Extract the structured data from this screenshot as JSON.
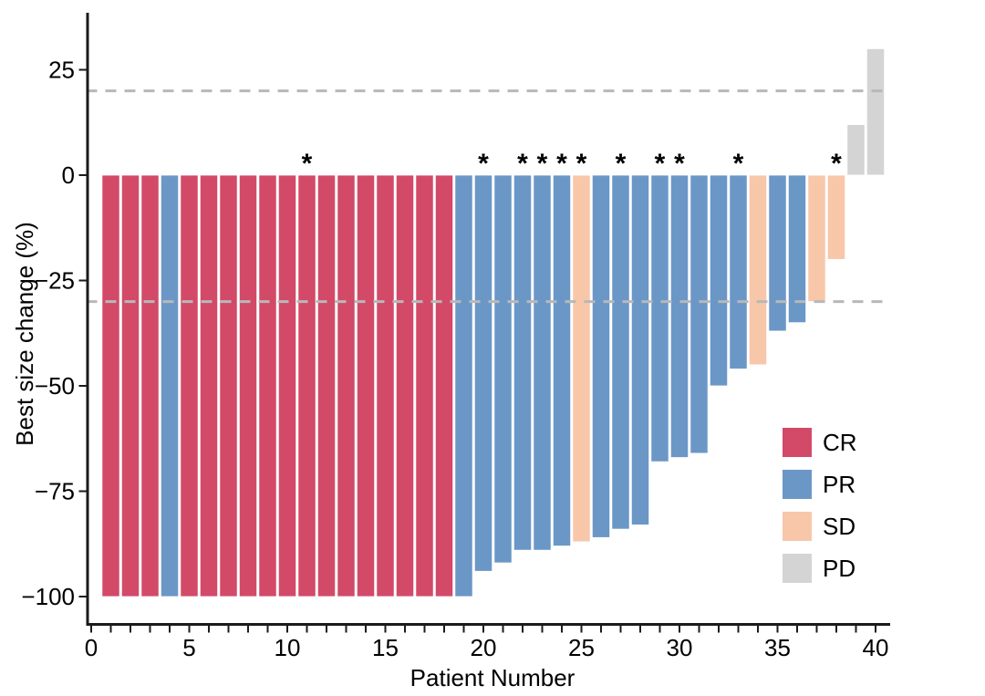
{
  "figure": {
    "background": "#ffffff"
  },
  "colors": {
    "CR": "#d24a68",
    "PR": "#6b97c7",
    "SD": "#f8c7a9",
    "PD": "#d4d4d4",
    "reference_line": "#b8b8b8",
    "axis": "#1a1a1a",
    "text": "#000000"
  },
  "chart_data": {
    "type": "bar",
    "variant": "waterfall",
    "title": "",
    "xlabel": "Patient Number",
    "ylabel": "Best size change (%)",
    "xlim": [
      -0.6,
      40.9
    ],
    "ylim": [
      -107,
      38
    ],
    "x_major_ticks": [
      0,
      5,
      10,
      15,
      20,
      25,
      30,
      35,
      40
    ],
    "x_minor_tick_every": 1,
    "y_ticks": [
      25,
      0,
      -25,
      -50,
      -75,
      -100
    ],
    "y_tick_labels": [
      "25",
      "0",
      "−25",
      "−50",
      "−75",
      "−100"
    ],
    "grid": "off",
    "reference_lines": [
      20,
      -30
    ],
    "marker_symbol": "*",
    "marked_patients": [
      11,
      20,
      22,
      23,
      24,
      25,
      27,
      29,
      30,
      33,
      38
    ],
    "legend": {
      "position": "inside-right-lower",
      "entries": [
        {
          "label": "CR",
          "color": "#d24a68"
        },
        {
          "label": "PR",
          "color": "#6b97c7"
        },
        {
          "label": "SD",
          "color": "#f8c7a9"
        },
        {
          "label": "PD",
          "color": "#d4d4d4"
        }
      ]
    },
    "patients": [
      {
        "patient": 1,
        "value": -100,
        "response": "CR",
        "marked": false
      },
      {
        "patient": 2,
        "value": -100,
        "response": "CR",
        "marked": false
      },
      {
        "patient": 3,
        "value": -100,
        "response": "CR",
        "marked": false
      },
      {
        "patient": 4,
        "value": -100,
        "response": "PR",
        "marked": false
      },
      {
        "patient": 5,
        "value": -100,
        "response": "CR",
        "marked": false
      },
      {
        "patient": 6,
        "value": -100,
        "response": "CR",
        "marked": false
      },
      {
        "patient": 7,
        "value": -100,
        "response": "CR",
        "marked": false
      },
      {
        "patient": 8,
        "value": -100,
        "response": "CR",
        "marked": false
      },
      {
        "patient": 9,
        "value": -100,
        "response": "CR",
        "marked": false
      },
      {
        "patient": 10,
        "value": -100,
        "response": "CR",
        "marked": false
      },
      {
        "patient": 11,
        "value": -100,
        "response": "CR",
        "marked": true
      },
      {
        "patient": 12,
        "value": -100,
        "response": "CR",
        "marked": false
      },
      {
        "patient": 13,
        "value": -100,
        "response": "CR",
        "marked": false
      },
      {
        "patient": 14,
        "value": -100,
        "response": "CR",
        "marked": false
      },
      {
        "patient": 15,
        "value": -100,
        "response": "CR",
        "marked": false
      },
      {
        "patient": 16,
        "value": -100,
        "response": "CR",
        "marked": false
      },
      {
        "patient": 17,
        "value": -100,
        "response": "CR",
        "marked": false
      },
      {
        "patient": 18,
        "value": -100,
        "response": "CR",
        "marked": false
      },
      {
        "patient": 19,
        "value": -100,
        "response": "PR",
        "marked": false
      },
      {
        "patient": 20,
        "value": -94,
        "response": "PR",
        "marked": true
      },
      {
        "patient": 21,
        "value": -92,
        "response": "PR",
        "marked": false
      },
      {
        "patient": 22,
        "value": -89,
        "response": "PR",
        "marked": true
      },
      {
        "patient": 23,
        "value": -89,
        "response": "PR",
        "marked": true
      },
      {
        "patient": 24,
        "value": -88,
        "response": "PR",
        "marked": true
      },
      {
        "patient": 25,
        "value": -87,
        "response": "SD",
        "marked": true
      },
      {
        "patient": 26,
        "value": -86,
        "response": "PR",
        "marked": false
      },
      {
        "patient": 27,
        "value": -84,
        "response": "PR",
        "marked": true
      },
      {
        "patient": 28,
        "value": -83,
        "response": "PR",
        "marked": false
      },
      {
        "patient": 29,
        "value": -68,
        "response": "PR",
        "marked": true
      },
      {
        "patient": 30,
        "value": -67,
        "response": "PR",
        "marked": true
      },
      {
        "patient": 31,
        "value": -66,
        "response": "PR",
        "marked": false
      },
      {
        "patient": 32,
        "value": -50,
        "response": "PR",
        "marked": false
      },
      {
        "patient": 33,
        "value": -46,
        "response": "PR",
        "marked": true
      },
      {
        "patient": 34,
        "value": -45,
        "response": "SD",
        "marked": false
      },
      {
        "patient": 35,
        "value": -37,
        "response": "PR",
        "marked": false
      },
      {
        "patient": 36,
        "value": -35,
        "response": "PR",
        "marked": false
      },
      {
        "patient": 37,
        "value": -30,
        "response": "SD",
        "marked": false
      },
      {
        "patient": 38,
        "value": -20,
        "response": "SD",
        "marked": true
      },
      {
        "patient": 39,
        "value": 12,
        "response": "PD",
        "marked": false
      },
      {
        "patient": 40,
        "value": 30,
        "response": "PD",
        "marked": false
      }
    ]
  }
}
